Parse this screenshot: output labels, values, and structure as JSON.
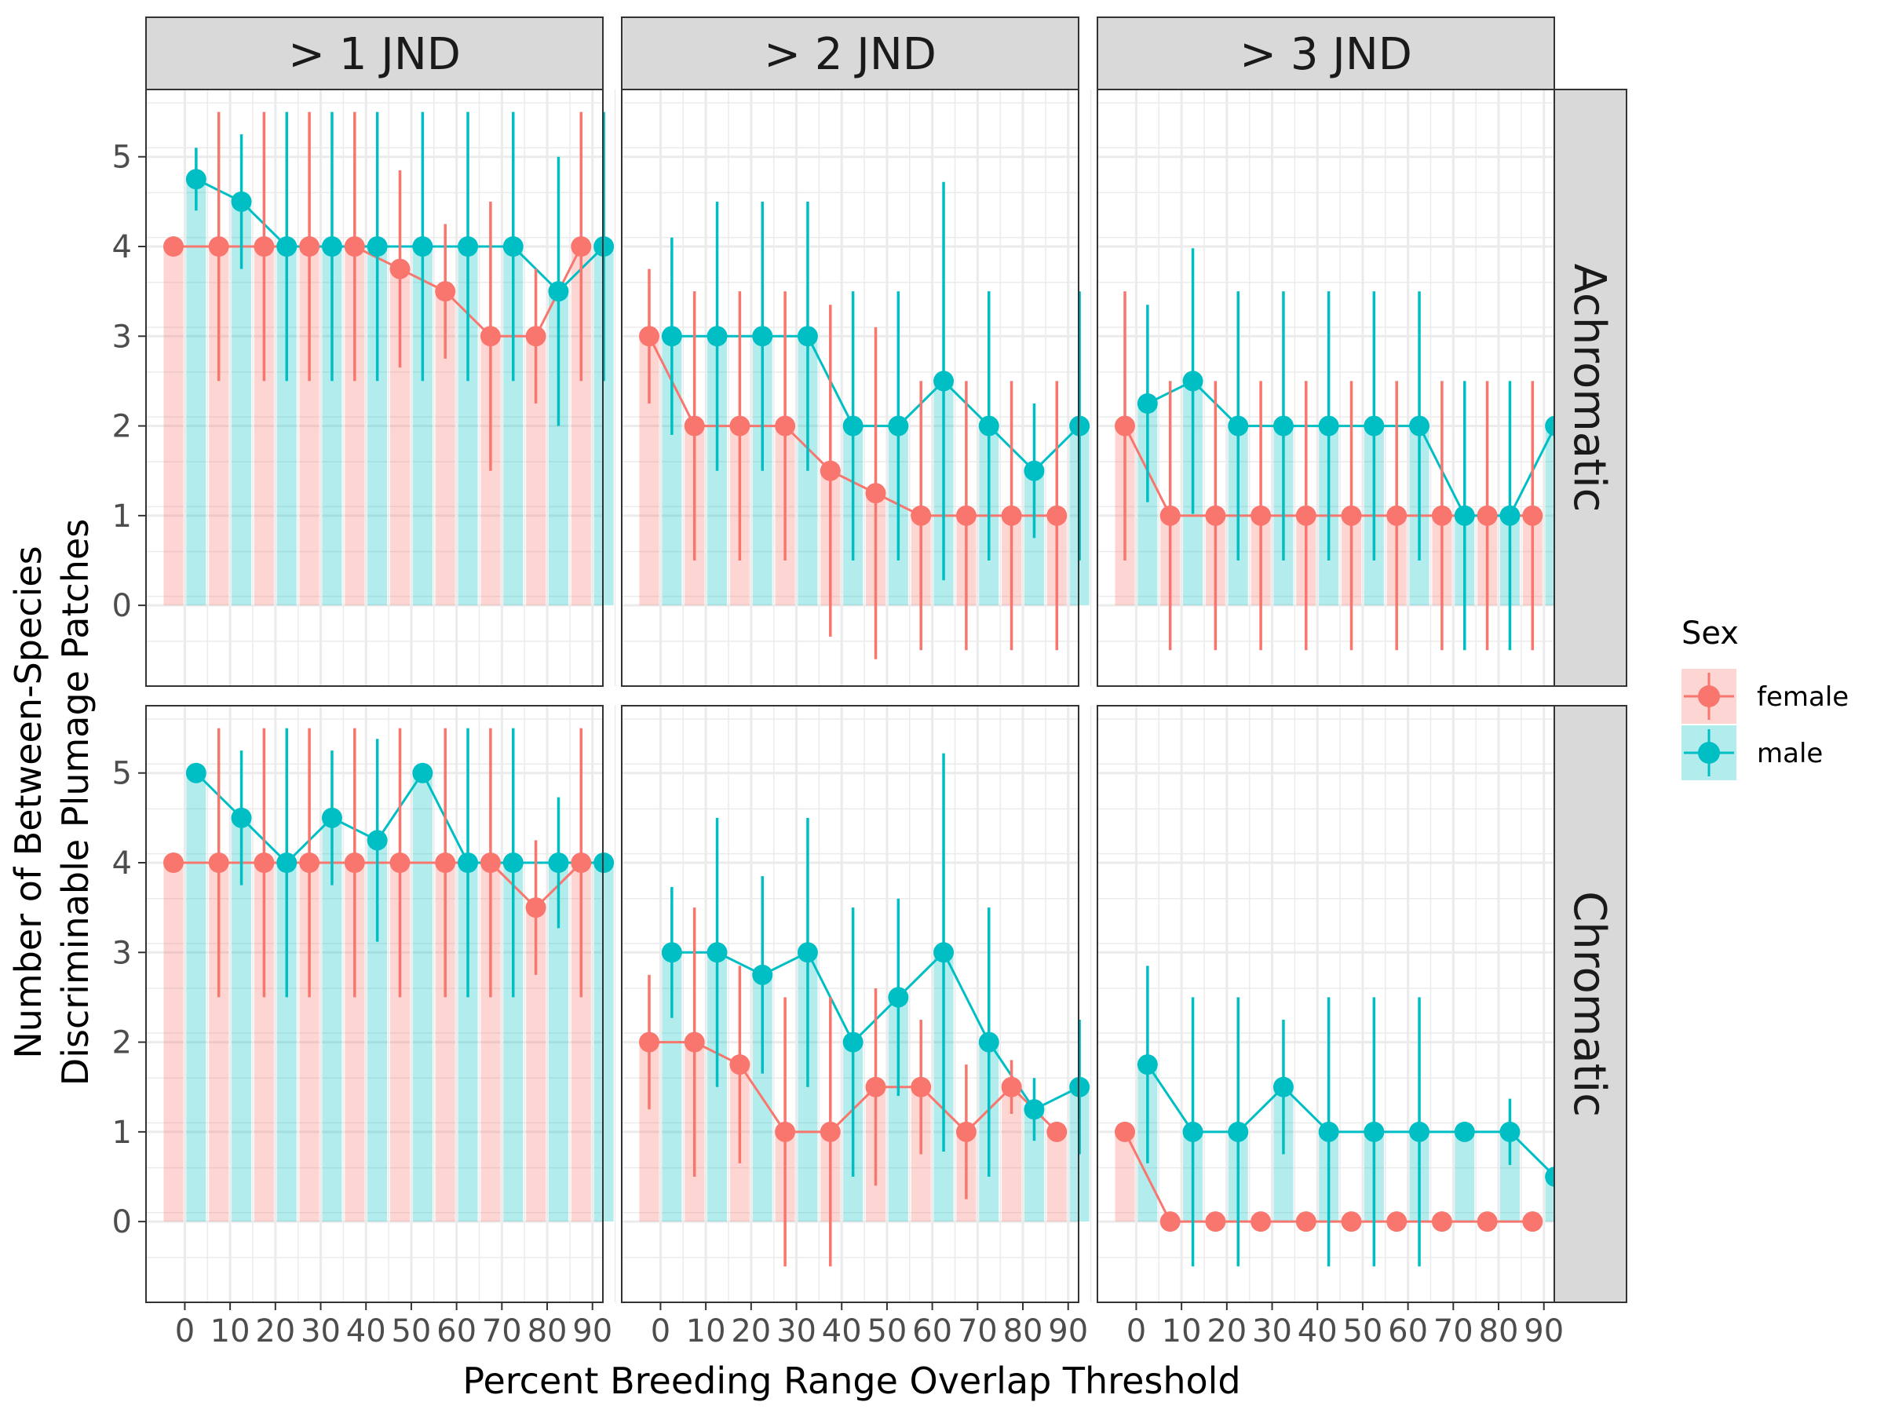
{
  "chart_data": {
    "type": "bar",
    "ylabel_line1": "Number of Between-Species",
    "ylabel_line2": "Discriminable Plumage Patches",
    "xlabel": "Percent Breeding Range Overlap Threshold",
    "x": [
      0,
      10,
      20,
      30,
      40,
      50,
      60,
      70,
      80,
      90
    ],
    "x_tick_labels": [
      "0",
      "10",
      "20",
      "30",
      "40",
      "50",
      "60",
      "70",
      "80",
      "90"
    ],
    "y_ticks": [
      0,
      1,
      2,
      3,
      4,
      5
    ],
    "ylim": [
      -0.9,
      5.75
    ],
    "columns": [
      "> 1 JND",
      "> 2 JND",
      "> 3 JND"
    ],
    "rows": [
      "Achromatic",
      "Chromatic"
    ],
    "legend": {
      "title": "Sex",
      "position": "right",
      "entries": [
        {
          "name": "female",
          "color": "#F8766D",
          "fill": "#F8766D"
        },
        {
          "name": "male",
          "color": "#00BFC4",
          "fill": "#00BFC4"
        }
      ]
    },
    "grid": true,
    "colors": {
      "female": "#F8766D",
      "male": "#00BFC4",
      "strip_bg": "#d9d9d9",
      "grid": "#ebebeb",
      "border": "#333333"
    },
    "panels": [
      {
        "row": "Achromatic",
        "column": "> 1 JND",
        "series": [
          {
            "name": "female",
            "values": [
              4,
              4,
              4,
              4,
              4,
              3.75,
              3.5,
              3,
              3,
              4
            ],
            "lower": [
              4,
              2.5,
              2.5,
              2.5,
              2.5,
              2.65,
              2.75,
              1.5,
              2.25,
              2.5
            ],
            "upper": [
              4,
              5.5,
              5.5,
              5.5,
              5.5,
              4.85,
              4.25,
              4.5,
              3.75,
              5.5
            ]
          },
          {
            "name": "male",
            "values": [
              4.75,
              4.5,
              4,
              4,
              4,
              4,
              4,
              4,
              3.5,
              4
            ],
            "lower": [
              4.4,
              3.75,
              2.5,
              2.5,
              2.5,
              2.5,
              2.5,
              2.5,
              2,
              2.5
            ],
            "upper": [
              5.1,
              5.25,
              5.5,
              5.5,
              5.5,
              5.5,
              5.5,
              5.5,
              5,
              5.5
            ]
          }
        ]
      },
      {
        "row": "Achromatic",
        "column": "> 2 JND",
        "series": [
          {
            "name": "female",
            "values": [
              3,
              2,
              2,
              2,
              1.5,
              1.25,
              1,
              1,
              1,
              1
            ],
            "lower": [
              2.25,
              0.5,
              0.5,
              0.5,
              -0.35,
              -0.6,
              -0.5,
              -0.5,
              -0.5,
              -0.5
            ],
            "upper": [
              3.75,
              3.5,
              3.5,
              3.5,
              3.35,
              3.1,
              2.5,
              2.5,
              2.5,
              2.5
            ]
          },
          {
            "name": "male",
            "values": [
              3,
              3,
              3,
              3,
              2,
              2,
              2.5,
              2,
              1.5,
              2
            ],
            "lower": [
              1.9,
              1.5,
              1.5,
              1.5,
              0.5,
              0.5,
              0.28,
              0.5,
              0.75,
              0.5
            ],
            "upper": [
              4.1,
              4.5,
              4.5,
              4.5,
              3.5,
              3.5,
              4.72,
              3.5,
              2.25,
              3.5
            ]
          }
        ]
      },
      {
        "row": "Achromatic",
        "column": "> 3 JND",
        "series": [
          {
            "name": "female",
            "values": [
              2,
              1,
              1,
              1,
              1,
              1,
              1,
              1,
              1,
              1
            ],
            "lower": [
              0.5,
              -0.5,
              -0.5,
              -0.5,
              -0.5,
              -0.5,
              -0.5,
              -0.5,
              -0.5,
              -0.5
            ],
            "upper": [
              3.5,
              2.5,
              2.5,
              2.5,
              2.5,
              2.5,
              2.5,
              2.5,
              2.5,
              2.5
            ]
          },
          {
            "name": "male",
            "values": [
              2.25,
              2.5,
              2,
              2,
              2,
              2,
              2,
              1,
              1,
              2
            ],
            "lower": [
              1.15,
              1.02,
              0.5,
              0.5,
              0.5,
              0.5,
              0.5,
              -0.5,
              -0.5,
              0.5
            ],
            "upper": [
              3.35,
              3.98,
              3.5,
              3.5,
              3.5,
              3.5,
              3.5,
              2.5,
              2.5,
              3.5
            ]
          }
        ]
      },
      {
        "row": "Chromatic",
        "column": "> 1 JND",
        "series": [
          {
            "name": "female",
            "values": [
              4,
              4,
              4,
              4,
              4,
              4,
              4,
              4,
              3.5,
              4
            ],
            "lower": [
              4,
              2.5,
              2.5,
              2.5,
              2.5,
              2.5,
              2.5,
              2.5,
              2.75,
              2.5
            ],
            "upper": [
              4,
              5.5,
              5.5,
              5.5,
              5.5,
              5.5,
              5.5,
              5.5,
              4.25,
              5.5
            ]
          },
          {
            "name": "male",
            "values": [
              5,
              4.5,
              4,
              4.5,
              4.25,
              5,
              4,
              4,
              4,
              4
            ],
            "lower": [
              5,
              3.75,
              2.5,
              3.75,
              3.12,
              5,
              2.5,
              2.5,
              3.27,
              4
            ],
            "upper": [
              5,
              5.25,
              5.5,
              5.25,
              5.38,
              5,
              5.5,
              5.5,
              4.73,
              4
            ]
          }
        ]
      },
      {
        "row": "Chromatic",
        "column": "> 2 JND",
        "series": [
          {
            "name": "female",
            "values": [
              2,
              2,
              1.75,
              1,
              1,
              1.5,
              1.5,
              1,
              1.5,
              1
            ],
            "lower": [
              1.25,
              0.5,
              0.65,
              -0.5,
              -0.5,
              0.4,
              0.75,
              0.25,
              1.2,
              1
            ],
            "upper": [
              2.75,
              3.5,
              2.85,
              2.5,
              2.5,
              2.6,
              2.25,
              1.75,
              1.8,
              1
            ]
          },
          {
            "name": "male",
            "values": [
              3,
              3,
              2.75,
              3,
              2,
              2.5,
              3,
              2,
              1.25,
              1.5
            ],
            "lower": [
              2.27,
              1.5,
              1.65,
              1.5,
              0.5,
              1.4,
              0.78,
              0.5,
              0.9,
              0.75
            ],
            "upper": [
              3.73,
              4.5,
              3.85,
              4.5,
              3.5,
              3.6,
              5.22,
              3.5,
              1.6,
              2.25
            ]
          }
        ]
      },
      {
        "row": "Chromatic",
        "column": "> 3 JND",
        "series": [
          {
            "name": "female",
            "values": [
              1,
              0,
              0,
              0,
              0,
              0,
              0,
              0,
              0,
              0
            ],
            "lower": [
              1,
              0,
              0,
              0,
              0,
              0,
              0,
              0,
              0,
              0
            ],
            "upper": [
              1,
              0,
              0,
              0,
              0,
              0,
              0,
              0,
              0,
              0
            ]
          },
          {
            "name": "male",
            "values": [
              1.75,
              1,
              1,
              1.5,
              1,
              1,
              1,
              1,
              1,
              0.5
            ],
            "lower": [
              0.65,
              -0.5,
              -0.5,
              0.75,
              -0.5,
              -0.5,
              -0.5,
              1,
              0.63,
              -0.25
            ],
            "upper": [
              2.85,
              2.5,
              2.5,
              2.25,
              2.5,
              2.5,
              2.5,
              1,
              1.37,
              1.25
            ]
          }
        ]
      }
    ]
  }
}
